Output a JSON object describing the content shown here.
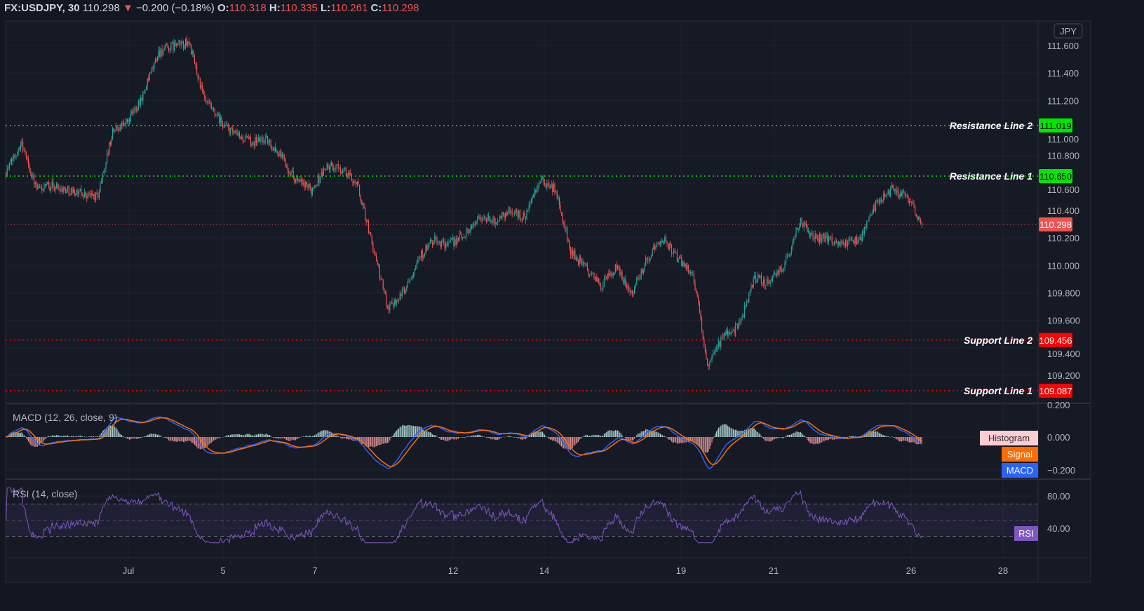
{
  "header": {
    "symbol": "FX:USDJPY, 30",
    "last": "110.298",
    "change_icon": "triangle-down-icon",
    "change": "−0.200 (−0.18%)",
    "o_label": "O:",
    "o": "110.318",
    "h_label": "H:",
    "h": "110.335",
    "l_label": "L:",
    "l": "110.261",
    "c_label": "C:",
    "c": "110.298"
  },
  "currency_badge": "JPY",
  "colors": {
    "up": "#26a69a",
    "down": "#ef5350",
    "resistance": "#00e600",
    "support": "#ff0000",
    "macd": "#2962ff",
    "signal": "#ff6d00",
    "rsi": "#7e57c2"
  },
  "chart_data": {
    "type": "candlestick",
    "symbol": "FX:USDJPY",
    "interval": "30",
    "x_ticks": [
      "Jul",
      "5",
      "7",
      "12",
      "14",
      "19",
      "21",
      "26",
      "28"
    ],
    "y_ticks": [
      "111.600",
      "111.400",
      "111.200",
      "111.000",
      "110.800",
      "110.600",
      "110.400",
      "110.200",
      "110.000",
      "109.800",
      "109.600",
      "109.400",
      "109.200"
    ],
    "ylim": [
      109.05,
      111.78
    ],
    "grid": true,
    "close_path": [
      110.68,
      110.9,
      110.55,
      110.58,
      110.55,
      110.52,
      110.5,
      110.98,
      111.05,
      111.25,
      111.55,
      111.6,
      111.62,
      111.2,
      111.05,
      110.95,
      110.9,
      110.92,
      110.8,
      110.62,
      110.55,
      110.72,
      110.7,
      110.6,
      110.15,
      109.7,
      109.8,
      110.05,
      110.18,
      110.15,
      110.22,
      110.35,
      110.32,
      110.4,
      110.35,
      110.62,
      110.55,
      110.1,
      109.98,
      109.85,
      109.98,
      109.8,
      110.05,
      110.2,
      110.05,
      109.95,
      109.25,
      109.5,
      109.55,
      109.9,
      109.88,
      110.0,
      110.32,
      110.2,
      110.2,
      110.15,
      110.2,
      110.45,
      110.55,
      110.5,
      110.298
    ],
    "horizontal_lines": [
      {
        "name": "Resistance Line 2",
        "value": 111.019,
        "label": "111.019",
        "kind": "resistance"
      },
      {
        "name": "Resistance Line 1",
        "value": 110.65,
        "label": "110.650",
        "kind": "resistance"
      },
      {
        "name": "Support Line 2",
        "value": 109.456,
        "label": "109.456",
        "kind": "support"
      },
      {
        "name": "Support Line 1",
        "value": 109.087,
        "label": "109.087",
        "kind": "support"
      }
    ],
    "last_price": {
      "value": 110.298,
      "label": "110.298"
    },
    "macd": {
      "title": "MACD (12, 26, close, 9)",
      "fast": 12,
      "slow": 26,
      "signal": 9,
      "y_ticks": [
        "0.200",
        "0.000",
        "−0.200"
      ],
      "legend": [
        "Histogram",
        "Signal",
        "MACD"
      ]
    },
    "rsi": {
      "title": "RSI (14, close)",
      "length": 14,
      "y_ticks": [
        "80.00",
        "40.00"
      ],
      "bands": [
        70,
        50,
        30
      ],
      "legend": "RSI"
    }
  }
}
